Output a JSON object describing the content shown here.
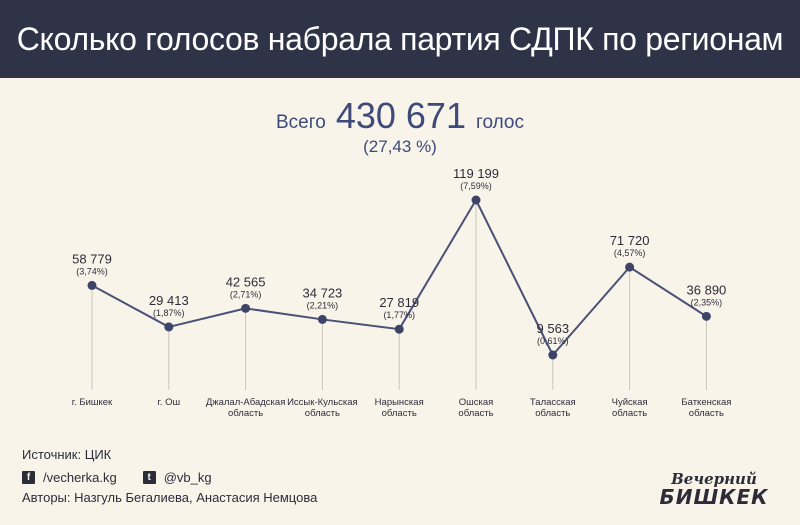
{
  "header": {
    "title": "Сколько голосов набрала партия СДПК по регионам"
  },
  "summary": {
    "label": "Всего",
    "value": "430 671",
    "unit": "голос",
    "percent": "(27,43 %)"
  },
  "chart_data": {
    "type": "line",
    "title": "Сколько голосов набрала партия СДПК по регионам",
    "xlabel": "",
    "ylabel": "",
    "ylim": [
      9563,
      119199
    ],
    "grid": false,
    "legend": "none",
    "colors": {
      "line": "#4a5177",
      "marker": "#3d4468",
      "drop": "#c9c7be"
    },
    "points": [
      {
        "region": [
          "г. Бишкек"
        ],
        "value": 58779,
        "value_label": "58 779",
        "percent_label": "(3,74%)"
      },
      {
        "region": [
          "г. Ош"
        ],
        "value": 29413,
        "value_label": "29 413",
        "percent_label": "(1,87%)"
      },
      {
        "region": [
          "Джалал-Абадская",
          "область"
        ],
        "value": 42565,
        "value_label": "42 565",
        "percent_label": "(2,71%)"
      },
      {
        "region": [
          "Иссык-Кульская",
          "область"
        ],
        "value": 34723,
        "value_label": "34 723",
        "percent_label": "(2,21%)"
      },
      {
        "region": [
          "Нарынская",
          "область"
        ],
        "value": 27819,
        "value_label": "27 819",
        "percent_label": "(1,77%)"
      },
      {
        "region": [
          "Ошская",
          "область"
        ],
        "value": 119199,
        "value_label": "119 199",
        "percent_label": "(7,59%)"
      },
      {
        "region": [
          "Таласская",
          "область"
        ],
        "value": 9563,
        "value_label": "9 563",
        "percent_label": "(0,61%)"
      },
      {
        "region": [
          "Чуйская",
          "область"
        ],
        "value": 71720,
        "value_label": "71 720",
        "percent_label": "(4,57%)"
      },
      {
        "region": [
          "Баткенская",
          "область"
        ],
        "value": 36890,
        "value_label": "36 890",
        "percent_label": "(2,35%)"
      }
    ]
  },
  "footer": {
    "source": "Источник: ЦИК",
    "facebook_icon": "facebook-icon",
    "facebook": "/vecherka.kg",
    "twitter_icon": "twitter-icon",
    "twitter": "@vb_kg",
    "authors": "Авторы: Назгуль Бегалиева, Анастасия Немцова"
  },
  "logo": {
    "line1": "Вечерний",
    "line2": "БИШКЕК"
  }
}
